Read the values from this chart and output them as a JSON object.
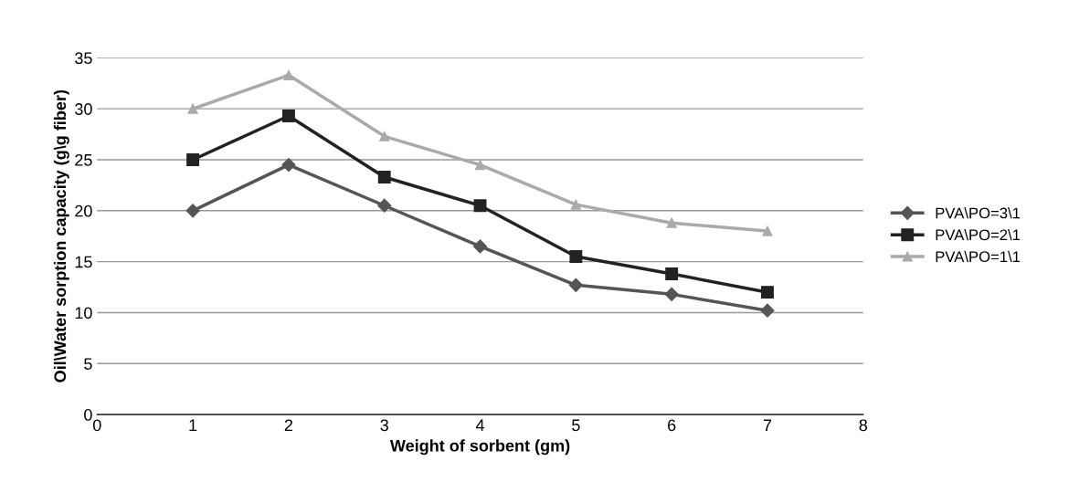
{
  "chart_data": {
    "type": "line",
    "xlabel": "Weight of sorbent (gm)",
    "ylabel": "Oil\\Water sorption capacity (g\\g fiber)",
    "x": [
      1,
      2,
      3,
      4,
      5,
      6,
      7
    ],
    "series": [
      {
        "name": "PVA\\PO=3\\1",
        "color": "#555555",
        "marker": "diamond",
        "values": [
          20,
          24.5,
          20.5,
          16.5,
          12.7,
          11.8,
          10.2
        ]
      },
      {
        "name": "PVA\\PO=2\\1",
        "color": "#222222",
        "marker": "square",
        "values": [
          25,
          29.3,
          23.3,
          20.5,
          15.5,
          13.8,
          12
        ]
      },
      {
        "name": "PVA\\PO=1\\1",
        "color": "#aaaaaa",
        "marker": "triangle",
        "values": [
          30,
          33.3,
          27.3,
          24.5,
          20.6,
          18.8,
          18
        ]
      }
    ],
    "xlim": [
      0,
      8
    ],
    "xticks": [
      0,
      1,
      2,
      3,
      4,
      5,
      6,
      7,
      8
    ],
    "ylim": [
      0,
      35
    ],
    "yticks": [
      0,
      5,
      10,
      15,
      20,
      25,
      30,
      35
    ],
    "grid": "y",
    "legend": "right",
    "line_style": "solid"
  }
}
